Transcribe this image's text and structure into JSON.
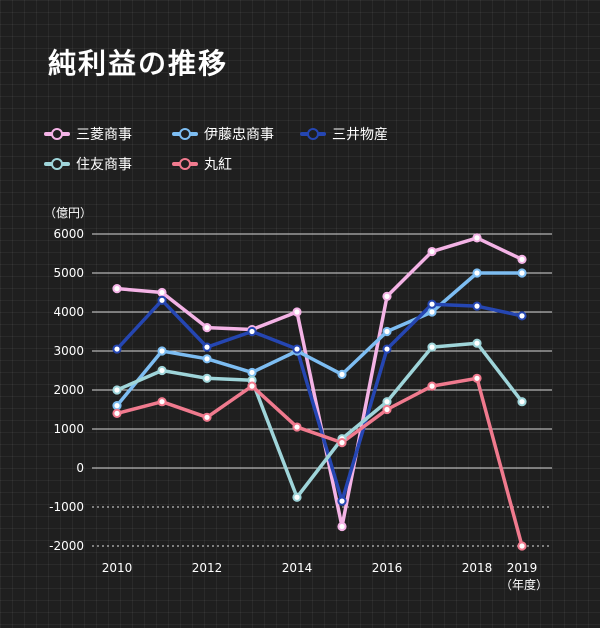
{
  "title": "純利益の推移",
  "chart_data": {
    "type": "line",
    "title": "純利益の推移",
    "ylabel": "（億円）",
    "xlabel": "（年度）",
    "ylim": [
      -2000,
      6000
    ],
    "yticks": [
      6000,
      5000,
      4000,
      3000,
      2000,
      1000,
      0,
      -1000,
      -2000
    ],
    "x": [
      2010,
      2011,
      2012,
      2013,
      2014,
      2015,
      2016,
      2017,
      2018,
      2019
    ],
    "xtick_labels": [
      "2010",
      "2012",
      "2014",
      "2016",
      "2018",
      "2019"
    ],
    "xtick_values": [
      2010,
      2012,
      2014,
      2016,
      2018,
      2019
    ],
    "legend_position": "top-left",
    "series": [
      {
        "name": "三菱商事",
        "color": "#f4b3e6",
        "values": [
          4600,
          4500,
          3600,
          3550,
          4000,
          -1500,
          4400,
          5550,
          5900,
          5350
        ]
      },
      {
        "name": "伊藤忠商事",
        "color": "#7dbdf2",
        "values": [
          1600,
          3000,
          2800,
          2450,
          3000,
          2400,
          3500,
          4000,
          5000,
          5000
        ]
      },
      {
        "name": "三井物産",
        "color": "#2546b2",
        "values": [
          3050,
          4300,
          3100,
          3500,
          3050,
          -850,
          3050,
          4200,
          4150,
          3900
        ]
      },
      {
        "name": "住友商事",
        "color": "#9fd5da",
        "values": [
          2000,
          2500,
          2300,
          2250,
          -750,
          750,
          1700,
          3100,
          3200,
          1700
        ]
      },
      {
        "name": "丸紅",
        "color": "#f07a8e",
        "values": [
          1400,
          1700,
          1300,
          2100,
          1050,
          650,
          1500,
          2100,
          2300,
          -2000
        ]
      }
    ]
  }
}
